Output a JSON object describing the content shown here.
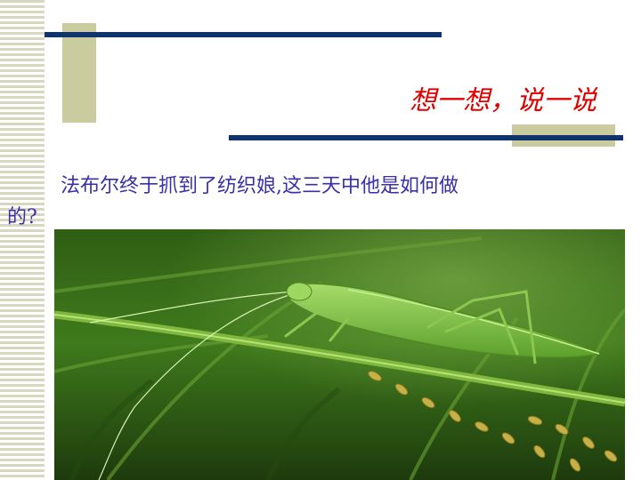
{
  "slide": {
    "title": "想一想，说一说",
    "question_line1": "法布尔终于抓到了纺织娘,这三天中他是如何做",
    "question_line2": "的?"
  },
  "colors": {
    "title": "#e00000",
    "question": "#3a2fa8",
    "accent_bar": "#11336b",
    "deco_block": "#cbcba0"
  }
}
